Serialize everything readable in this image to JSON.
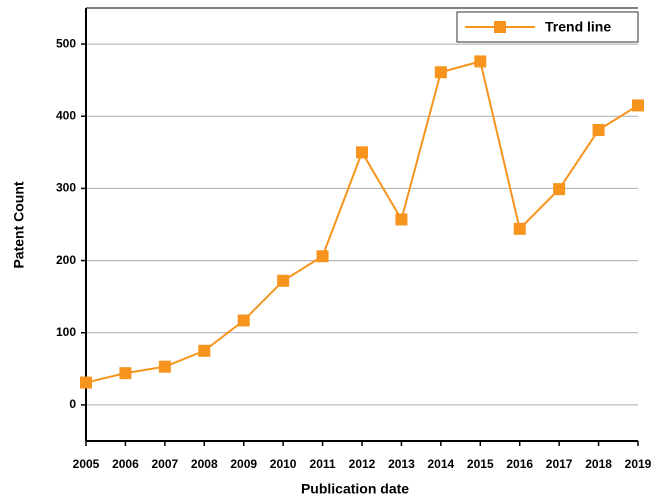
{
  "chart_data": {
    "type": "line",
    "x": [
      2005,
      2006,
      2007,
      2008,
      2009,
      2010,
      2011,
      2012,
      2013,
      2014,
      2015,
      2016,
      2017,
      2018,
      2019
    ],
    "series": [
      {
        "name": "Trend line",
        "color": "#f7941d",
        "values": [
          31,
          44,
          53,
          75,
          117,
          172,
          206,
          350,
          257,
          461,
          476,
          244,
          299,
          381,
          415
        ]
      }
    ],
    "xlabel": "Publication date",
    "ylabel": "Patent Count",
    "xlim": [
      2005,
      2019
    ],
    "xticks": [
      2005,
      2006,
      2007,
      2008,
      2009,
      2010,
      2011,
      2012,
      2013,
      2014,
      2015,
      2016,
      2017,
      2018,
      2019
    ],
    "ylim": [
      -50,
      550
    ],
    "yticks": [
      0,
      100,
      200,
      300,
      400,
      500
    ],
    "grid": true,
    "legend": "upper right"
  }
}
